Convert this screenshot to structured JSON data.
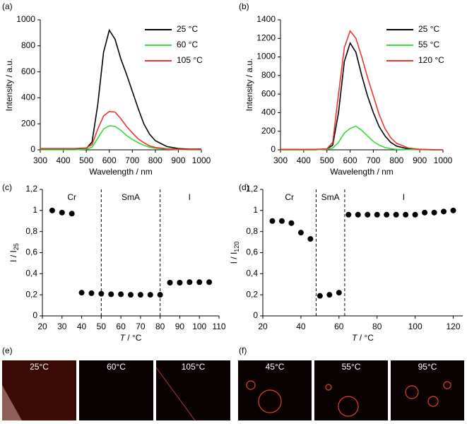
{
  "chart_data": [
    {
      "type": "line",
      "panel": "(a)",
      "xlabel": "Wavelength / nm",
      "ylabel": "Intensity / a.u.",
      "x": [
        300,
        350,
        400,
        450,
        500,
        525,
        550,
        575,
        600,
        625,
        650,
        675,
        700,
        725,
        750,
        775,
        800,
        850,
        900,
        950,
        1000
      ],
      "series": [
        {
          "name": "25 °C",
          "color": "#000000",
          "values": [
            5,
            5,
            5,
            5,
            10,
            60,
            350,
            750,
            920,
            850,
            700,
            580,
            450,
            320,
            200,
            120,
            70,
            25,
            10,
            5,
            5
          ]
        },
        {
          "name": "60 °C",
          "color": "#33dd33",
          "values": [
            0,
            0,
            0,
            0,
            5,
            20,
            90,
            160,
            185,
            180,
            150,
            110,
            80,
            55,
            35,
            20,
            12,
            5,
            2,
            0,
            0
          ]
        },
        {
          "name": "105 °C",
          "color": "#ee3333",
          "values": [
            10,
            10,
            10,
            10,
            15,
            40,
            160,
            260,
            295,
            290,
            240,
            180,
            130,
            85,
            55,
            30,
            18,
            8,
            5,
            3,
            2
          ]
        }
      ],
      "xlim": [
        300,
        1000
      ],
      "xticks": [
        300,
        400,
        500,
        600,
        700,
        800,
        900,
        1000
      ],
      "ylim": [
        0,
        1000
      ],
      "yticks": [
        0,
        200,
        400,
        600,
        800,
        1000
      ],
      "legend": "top-right"
    },
    {
      "type": "line",
      "panel": "(b)",
      "xlabel": "Wavelength / nm",
      "ylabel": "Intensity / a.u.",
      "x": [
        300,
        350,
        400,
        450,
        500,
        525,
        550,
        575,
        600,
        625,
        650,
        675,
        700,
        725,
        750,
        775,
        800,
        850,
        900,
        950,
        1000
      ],
      "series": [
        {
          "name": "25 °C",
          "color": "#000000",
          "values": [
            0,
            0,
            0,
            0,
            10,
            50,
            400,
            950,
            1150,
            1050,
            800,
            580,
            400,
            250,
            150,
            80,
            40,
            10,
            5,
            0,
            0
          ]
        },
        {
          "name": "55 °C",
          "color": "#33dd33",
          "values": [
            0,
            0,
            0,
            0,
            5,
            20,
            80,
            180,
            230,
            255,
            210,
            150,
            90,
            50,
            25,
            12,
            5,
            2,
            0,
            0,
            0
          ]
        },
        {
          "name": "120 °C",
          "color": "#ee3333",
          "values": [
            5,
            5,
            5,
            5,
            10,
            80,
            600,
            1100,
            1280,
            1200,
            1000,
            780,
            580,
            380,
            230,
            130,
            70,
            20,
            5,
            2,
            0
          ]
        }
      ],
      "xlim": [
        300,
        1000
      ],
      "xticks": [
        300,
        400,
        500,
        600,
        700,
        800,
        900,
        1000
      ],
      "ylim": [
        0,
        1400
      ],
      "yticks": [
        0,
        200,
        400,
        600,
        800,
        1000,
        1200,
        1400
      ],
      "legend": "top-right"
    },
    {
      "type": "scatter",
      "panel": "(c)",
      "xlabel_var": "T",
      "xlabel": " / °C",
      "ylabel": "I / I",
      "ylabel_sub": "25",
      "color": "#000000",
      "x": [
        25,
        30,
        35,
        40,
        45,
        50,
        55,
        60,
        65,
        70,
        75,
        80,
        85,
        90,
        95,
        100,
        105
      ],
      "values": [
        1.0,
        0.98,
        0.97,
        0.22,
        0.215,
        0.21,
        0.205,
        0.205,
        0.2,
        0.2,
        0.2,
        0.2,
        0.315,
        0.315,
        0.32,
        0.32,
        0.32
      ],
      "boundaries": [
        50,
        80
      ],
      "phases": [
        "Cr",
        "SmA",
        "I"
      ],
      "xlim": [
        20,
        110
      ],
      "xticks": [
        20,
        30,
        40,
        50,
        60,
        70,
        80,
        90,
        100,
        110
      ],
      "ylim": [
        0,
        1.2
      ],
      "yticks": [
        0,
        {
          "value": 0.2,
          "label": "0,2"
        },
        {
          "value": 0.4,
          "label": "0,4"
        },
        {
          "value": 0.6,
          "label": "0,6"
        },
        {
          "value": 0.8,
          "label": "0,8"
        },
        1,
        {
          "value": 1.2,
          "label": "1,2"
        }
      ]
    },
    {
      "type": "scatter",
      "panel": "(d)",
      "xlabel_var": "T",
      "xlabel": " / °C",
      "ylabel": "I / I",
      "ylabel_sub": "120",
      "color": "#000000",
      "x": [
        25,
        30,
        35,
        40,
        45,
        50,
        55,
        60,
        65,
        70,
        75,
        80,
        85,
        90,
        95,
        100,
        105,
        110,
        115,
        120
      ],
      "values": [
        0.9,
        0.9,
        0.88,
        0.79,
        0.73,
        0.19,
        0.2,
        0.22,
        0.96,
        0.96,
        0.96,
        0.96,
        0.96,
        0.96,
        0.96,
        0.96,
        0.98,
        0.98,
        0.99,
        1.0
      ],
      "boundaries": [
        48,
        63
      ],
      "phases": [
        "Cr",
        "SmA",
        "I"
      ],
      "xlim": [
        20,
        125
      ],
      "xticks": [
        20,
        40,
        60,
        80,
        100,
        120
      ],
      "ylim": [
        0,
        1.2
      ],
      "yticks": [
        0,
        {
          "value": 0.2,
          "label": "0,2"
        },
        {
          "value": 0.4,
          "label": "0,4"
        },
        {
          "value": 0.6,
          "label": "0,6"
        },
        {
          "value": 0.8,
          "label": "0,8"
        },
        1,
        {
          "value": 1.2,
          "label": "1,2"
        }
      ]
    }
  ],
  "micrographs": [
    {
      "panel": "(e)",
      "frames": [
        "25°C",
        "60°C",
        "105°C"
      ]
    },
    {
      "panel": "(f)",
      "frames": [
        "45°C",
        "55°C",
        "95°C"
      ]
    }
  ]
}
